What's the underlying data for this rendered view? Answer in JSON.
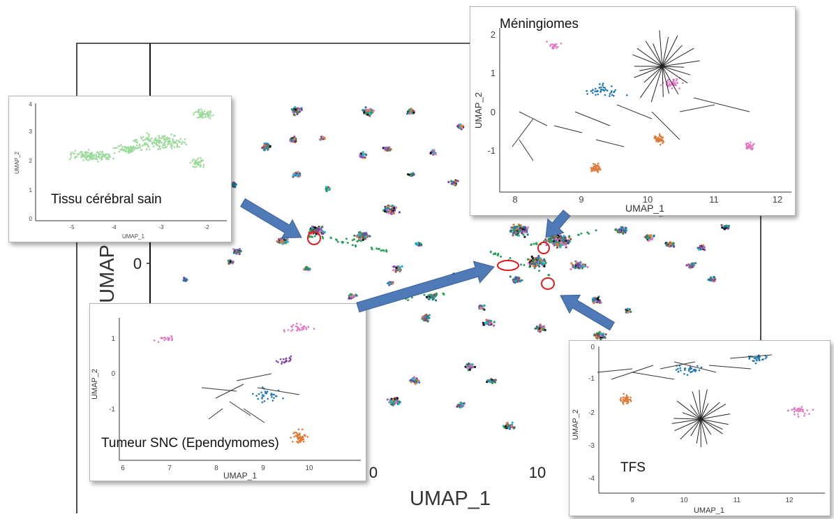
{
  "colors": {
    "arrow": "#4F7AB8",
    "circle": "#E01B1B",
    "palette": [
      "#2CA05A",
      "#1F77B4",
      "#E07B39",
      "#7E3FA6",
      "#E377C2",
      "#17BECF",
      "#111111",
      "#8C564B",
      "#9467BD",
      "#2E8B57"
    ],
    "healthy": "#9CDB9C"
  },
  "main_plot": {
    "xlabel": "UMAP_1",
    "ylabel": "UMAP",
    "x_ticks": [
      "0",
      "10"
    ],
    "y_ticks": [
      "0"
    ]
  },
  "insets": [
    {
      "caption": "Tissu cérébral sain",
      "xlabel": "UMAP_1",
      "ylabel": "UMAP_2",
      "x_ticks": [
        "-5",
        "-4",
        "-3",
        "-2"
      ],
      "y_ticks": [
        "4",
        "3",
        "2",
        "1",
        "0"
      ]
    },
    {
      "caption": "Méningiomes",
      "xlabel": "UMAP_1",
      "ylabel": "UMAP_2",
      "x_ticks": [
        "8",
        "9",
        "10",
        "11",
        "12"
      ],
      "y_ticks": [
        "2",
        "1",
        "0",
        "-1"
      ]
    },
    {
      "caption": "Tumeur SNC (Ependymomes)",
      "xlabel": "UMAP_1",
      "ylabel": "UMAP_2",
      "x_ticks": [
        "6",
        "7",
        "8",
        "9",
        "10"
      ],
      "y_ticks": [
        "1",
        "0",
        "-1"
      ]
    },
    {
      "caption": "TFS",
      "xlabel": "UMAP_1",
      "ylabel": "UMAP_2",
      "x_ticks": [
        "9",
        "10",
        "11",
        "12"
      ],
      "y_ticks": [
        "0",
        "-1",
        "-2",
        "-3",
        "-4"
      ]
    }
  ],
  "chart_data": {
    "type": "scatter",
    "xlabel": "UMAP_1",
    "ylabel": "UMAP",
    "x_ticks": [
      0,
      10
    ],
    "y_ticks": [
      0
    ],
    "series": [],
    "insets": [
      {
        "caption": "Tissu cérébral sain",
        "x_range": [
          -5.5,
          -1.7
        ],
        "y_range": [
          0,
          4
        ],
        "type": "scatter"
      },
      {
        "caption": "Méningiomes",
        "x_range": [
          7.8,
          12.1
        ],
        "y_range": [
          -1.6,
          2.1
        ],
        "type": "scatter"
      },
      {
        "caption": "Tumeur SNC (Ependymomes)",
        "x_range": [
          6,
          10.2
        ],
        "y_range": [
          -1.5,
          1.5
        ],
        "type": "scatter"
      },
      {
        "caption": "TFS",
        "x_range": [
          8.4,
          12.5
        ],
        "y_range": [
          -4.2,
          0.2
        ],
        "type": "scatter"
      }
    ]
  }
}
